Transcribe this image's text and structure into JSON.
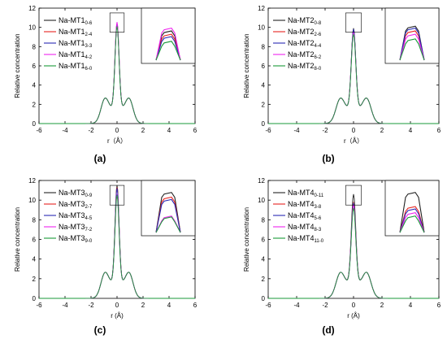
{
  "chart_data": [
    {
      "type": "line",
      "panel_label": "(a)",
      "xlabel": "r（Å）",
      "ylabel": "Relative concentration",
      "xlim": [
        -6,
        6
      ],
      "ylim": [
        0,
        12
      ],
      "xticks": [
        "-6",
        "-4",
        "-2",
        "0",
        "2",
        "4",
        "6"
      ],
      "yticks": [
        "0",
        "2",
        "4",
        "6",
        "8",
        "10",
        "12"
      ],
      "grid": false,
      "legend_position": "top-left",
      "inset": true,
      "series": [
        {
          "base": "Na-MT1",
          "sub": "0-6",
          "color": "#222222",
          "peak": 10.45,
          "inset_peak": 0.62
        },
        {
          "base": "Na-MT1",
          "sub": "2-4",
          "color": "#e8231e",
          "peak": 10.3,
          "inset_peak": 0.55
        },
        {
          "base": "Na-MT1",
          "sub": "3-3",
          "color": "#2a2ab5",
          "peak": 10.25,
          "inset_peak": 0.5
        },
        {
          "base": "Na-MT1",
          "sub": "4-2",
          "color": "#ee22ee",
          "peak": 10.55,
          "inset_peak": 0.68
        },
        {
          "base": "Na-MT1",
          "sub": "6-0",
          "color": "#1a9a3a",
          "peak": 10.1,
          "inset_peak": 0.4
        }
      ]
    },
    {
      "type": "line",
      "panel_label": "(b)",
      "xlabel": "r（Å）",
      "ylabel": "Relative concentration",
      "xlim": [
        -6,
        6
      ],
      "ylim": [
        0,
        12
      ],
      "xticks": [
        "-6",
        "-4",
        "-2",
        "0",
        "2",
        "4",
        "6"
      ],
      "yticks": [
        "0",
        "2",
        "4",
        "6",
        "8",
        "10",
        "12"
      ],
      "grid": false,
      "legend_position": "top-left",
      "inset": true,
      "series": [
        {
          "base": "Na-MT2",
          "sub": "0-8",
          "color": "#222222",
          "peak": 9.9,
          "inset_peak": 0.72
        },
        {
          "base": "Na-MT2",
          "sub": "2-6",
          "color": "#e8231e",
          "peak": 9.7,
          "inset_peak": 0.62
        },
        {
          "base": "Na-MT2",
          "sub": "4-4",
          "color": "#2a2ab5",
          "peak": 9.8,
          "inset_peak": 0.68
        },
        {
          "base": "Na-MT2",
          "sub": "6-2",
          "color": "#ee22ee",
          "peak": 9.5,
          "inset_peak": 0.55
        },
        {
          "base": "Na-MT2",
          "sub": "8-0",
          "color": "#1a9a3a",
          "peak": 9.3,
          "inset_peak": 0.45
        }
      ]
    },
    {
      "type": "line",
      "panel_label": "(c)",
      "xlabel": "r (Å)",
      "ylabel": "Relative concentration",
      "xlim": [
        -6,
        6
      ],
      "ylim": [
        0,
        12
      ],
      "xticks": [
        "-6",
        "-4",
        "-2",
        "0",
        "2",
        "4",
        "6"
      ],
      "yticks": [
        "0",
        "2",
        "4",
        "6",
        "8",
        "10",
        "12"
      ],
      "grid": false,
      "legend_position": "top-left",
      "inset": true,
      "series": [
        {
          "base": "Na-MT3",
          "sub": "0-9",
          "color": "#222222",
          "peak": 11.5,
          "inset_peak": 0.85
        },
        {
          "base": "Na-MT3",
          "sub": "2-7",
          "color": "#e8231e",
          "peak": 11.3,
          "inset_peak": 0.75
        },
        {
          "base": "Na-MT3",
          "sub": "4-5",
          "color": "#2a2ab5",
          "peak": 11.2,
          "inset_peak": 0.7
        },
        {
          "base": "Na-MT3",
          "sub": "7-2",
          "color": "#ee22ee",
          "peak": 10.6,
          "inset_peak": 0.35
        },
        {
          "base": "Na-MT3",
          "sub": "9-0",
          "color": "#1a9a3a",
          "peak": 10.5,
          "inset_peak": 0.33
        }
      ]
    },
    {
      "type": "line",
      "panel_label": "(d)",
      "xlabel": "r (Å)",
      "ylabel": "Relative concentration",
      "xlim": [
        -6,
        6
      ],
      "ylim": [
        0,
        12
      ],
      "xticks": [
        "-6",
        "-4",
        "-2",
        "0",
        "2",
        "4",
        "6"
      ],
      "yticks": [
        "0",
        "2",
        "4",
        "6",
        "8",
        "10",
        "12"
      ],
      "grid": false,
      "legend_position": "top-left",
      "inset": true,
      "series": [
        {
          "base": "Na-MT4",
          "sub": "0-11",
          "color": "#222222",
          "peak": 10.6,
          "inset_peak": 0.85
        },
        {
          "base": "Na-MT4",
          "sub": "3-8",
          "color": "#e8231e",
          "peak": 9.8,
          "inset_peak": 0.55
        },
        {
          "base": "Na-MT4",
          "sub": "5-6",
          "color": "#2a2ab5",
          "peak": 9.7,
          "inset_peak": 0.5
        },
        {
          "base": "Na-MT4",
          "sub": "8-3",
          "color": "#ee22ee",
          "peak": 9.5,
          "inset_peak": 0.42
        },
        {
          "base": "Na-MT4",
          "sub": "11-0",
          "color": "#1a9a3a",
          "peak": 9.2,
          "inset_peak": 0.35
        }
      ]
    }
  ]
}
